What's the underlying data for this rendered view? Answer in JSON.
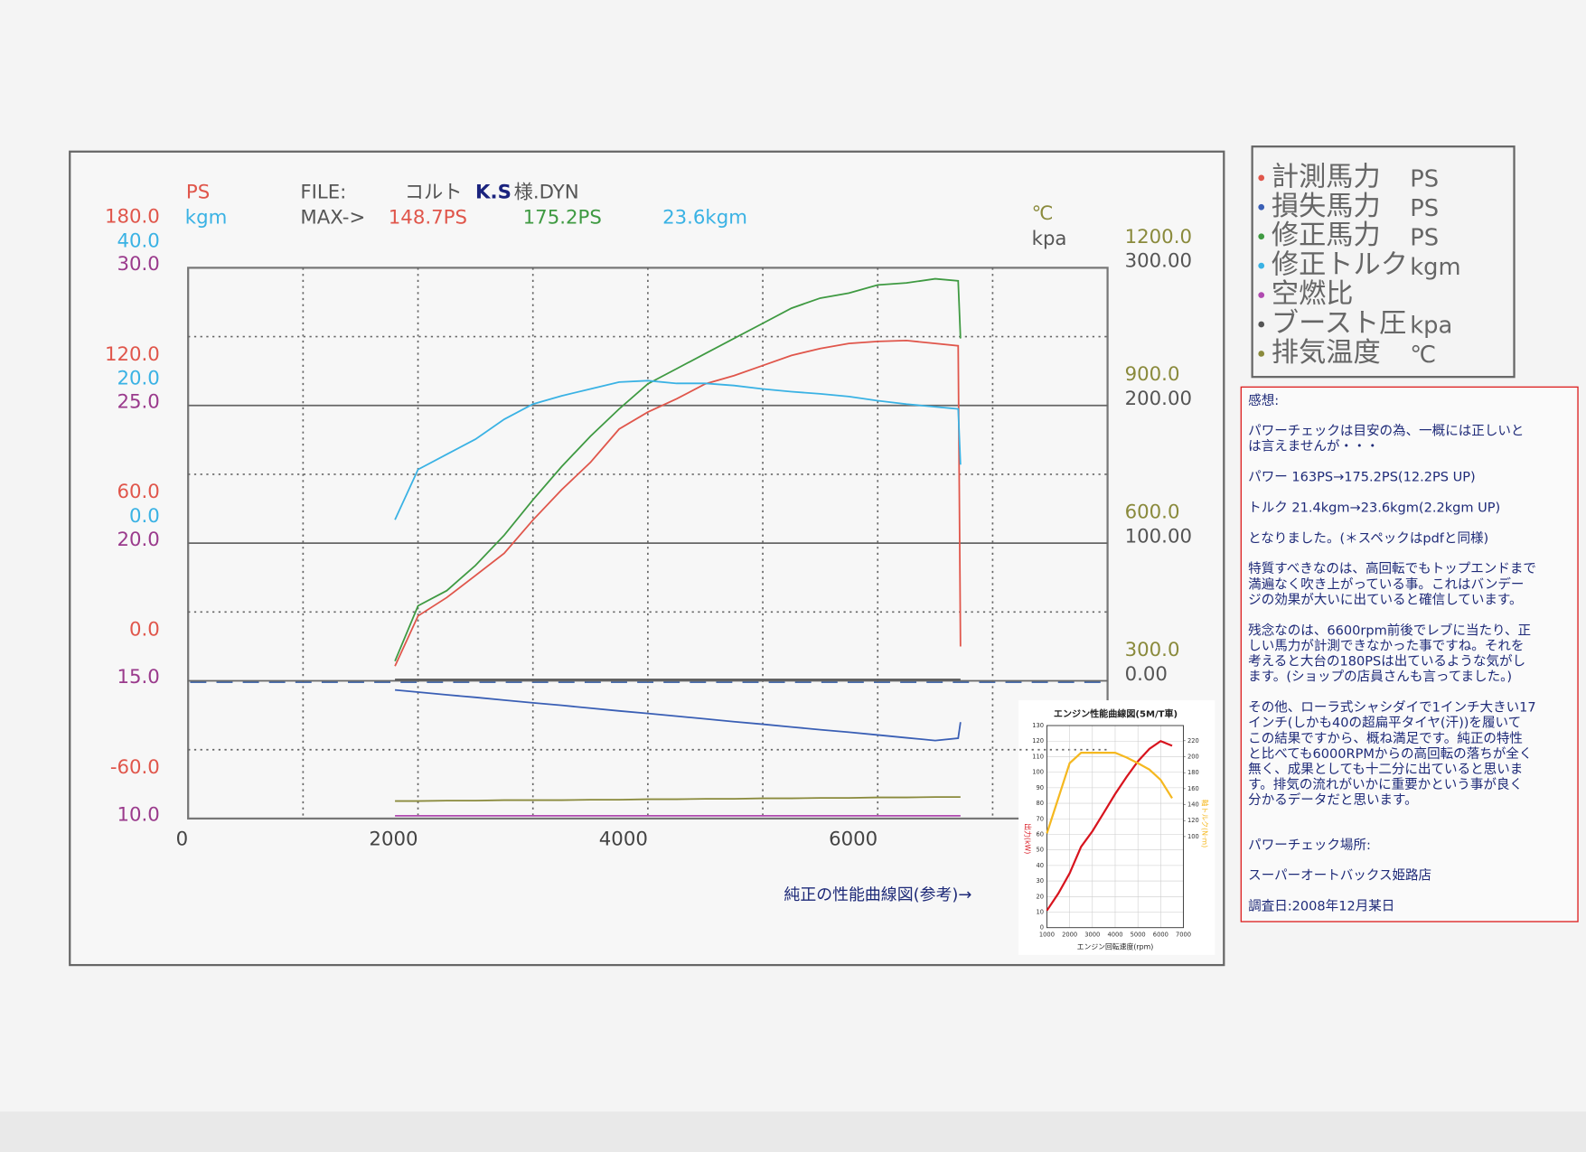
{
  "chart_data": [
    {
      "type": "line",
      "file": {
        "label": "FILE:",
        "name": [
          "コルト",
          "K.S",
          "様.DYN"
        ]
      },
      "max_label": "MAX->",
      "x": [
        1800,
        2000,
        2250,
        2500,
        2750,
        3000,
        3250,
        3500,
        3750,
        4000,
        4250,
        4500,
        4750,
        5000,
        5250,
        5500,
        5750,
        6000,
        6250,
        6500,
        6700,
        6720
      ],
      "xlim": [
        0,
        8000
      ],
      "xticks": [
        0,
        2000,
        4000,
        6000
      ],
      "grid": true,
      "axes": [
        {
          "label": "PS",
          "color": "#e0564b",
          "side": "left",
          "lim": [
            -60,
            180
          ],
          "ticks": [
            {
              "value": 180,
              "label": "180.0"
            },
            {
              "value": 120,
              "label": "120.0"
            },
            {
              "value": 60,
              "label": "60.0"
            },
            {
              "value": 0,
              "label": "0.0"
            },
            {
              "value": -60,
              "label": "-60.0"
            }
          ]
        },
        {
          "label": "kgm",
          "color": "#3ab2e4",
          "side": "left",
          "lim": [
            -40,
            40
          ],
          "ticks": [
            {
              "value": 40,
              "label": "40.0"
            },
            {
              "value": 20,
              "label": "20.0"
            },
            {
              "value": 0,
              "label": "0.0"
            }
          ]
        },
        {
          "color": "#9a3a8c",
          "side": "left",
          "lim": [
            10,
            30
          ],
          "ticks": [
            {
              "value": 30,
              "label": "30.0"
            },
            {
              "value": 25,
              "label": "25.0"
            },
            {
              "value": 20,
              "label": "20.0"
            },
            {
              "value": 15,
              "label": "15.0"
            },
            {
              "value": 10,
              "label": "10.0"
            }
          ]
        },
        {
          "label": "℃",
          "color": "#8a8a3c",
          "side": "right",
          "lim": [
            0,
            1200
          ],
          "ticks": [
            {
              "value": 1200,
              "label": "1200.0"
            },
            {
              "value": 900,
              "label": "900.0"
            },
            {
              "value": 600,
              "label": "600.0"
            },
            {
              "value": 300,
              "label": "300.0"
            }
          ]
        },
        {
          "label": "kpa",
          "color": "#555555",
          "side": "right",
          "lim": [
            -100,
            300
          ],
          "ticks": [
            {
              "value": 300,
              "label": "300.00"
            },
            {
              "value": 200,
              "label": "200.00"
            },
            {
              "value": 100,
              "label": "100.00"
            },
            {
              "value": 0,
              "label": "0.00"
            }
          ]
        }
      ],
      "series": [
        {
          "name": "計測馬力",
          "color": "#e0564b",
          "axis": 0,
          "max": 148.7,
          "max_label": "148.7PS",
          "values": [
            6.4,
            28.3,
            36.3,
            45.9,
            55.6,
            70.1,
            83.3,
            95.2,
            109.7,
            117.1,
            122.9,
            129.4,
            133.0,
            137.4,
            141.8,
            144.8,
            147.0,
            147.9,
            148.3,
            147.0,
            146.0,
            15.0
          ]
        },
        {
          "name": "損失馬力",
          "color": "#3a5fb5",
          "axis": 0,
          "values": [
            -4.0,
            -4.9,
            -6.1,
            -7.2,
            -8.4,
            -9.6,
            -10.7,
            -11.9,
            -13.1,
            -14.2,
            -15.4,
            -16.6,
            -17.8,
            -18.9,
            -20.1,
            -21.3,
            -22.4,
            -23.6,
            -24.8,
            -26.0,
            -25.0,
            -18.0
          ]
        },
        {
          "name": "修正馬力",
          "color": "#3f9a42",
          "axis": 0,
          "max": 175.2,
          "max_label": "175.2PS",
          "values": [
            8.6,
            32.7,
            39.3,
            50.3,
            63.5,
            78.9,
            93.4,
            106.6,
            118.5,
            129.4,
            136.0,
            142.6,
            149.2,
            155.8,
            162.4,
            166.8,
            169.0,
            172.5,
            173.4,
            175.2,
            174.3,
            149.2
          ]
        },
        {
          "name": "修正トルク",
          "color": "#3ab2e4",
          "axis": 1,
          "max": 23.6,
          "max_label": "23.6kgm",
          "values": [
            3.4,
            10.7,
            12.9,
            15.1,
            18.0,
            20.2,
            21.4,
            22.4,
            23.4,
            23.6,
            23.2,
            23.2,
            22.9,
            22.4,
            22.0,
            21.7,
            21.3,
            20.7,
            20.2,
            19.8,
            19.5,
            11.4
          ]
        },
        {
          "name": "空燃比",
          "color": "#b04ab0",
          "axis": 2,
          "values": [
            10.1,
            10.1,
            10.1,
            10.1,
            10.1,
            10.1,
            10.1,
            10.1,
            10.1,
            10.1,
            10.1,
            10.1,
            10.1,
            10.1,
            10.1,
            10.1,
            10.1,
            10.1,
            10.1,
            10.1,
            10.1,
            10.1
          ]
        },
        {
          "name": "ブースト圧",
          "color": "#555555",
          "axis": 4,
          "values": [
            1,
            1,
            1,
            1,
            1,
            1,
            1,
            1,
            1,
            1,
            1,
            1,
            1,
            1,
            1,
            1,
            1,
            1,
            1,
            1,
            1,
            1
          ]
        },
        {
          "name": "排気温度",
          "color": "#8a8a3c",
          "axis": 3,
          "values": [
            38,
            38,
            39,
            39,
            40,
            40,
            40,
            41,
            41,
            42,
            42,
            43,
            43,
            44,
            44,
            45,
            45,
            46,
            46,
            47,
            47,
            47
          ]
        }
      ]
    },
    {
      "type": "line",
      "title": "エンジン性能曲線図(5M/T車)",
      "xlabel": "エンジン回転速度(rpm)",
      "ylabel": "出力(kW)",
      "y2label": "軸トルク(N·m)",
      "x": [
        1000,
        1500,
        2000,
        2500,
        3000,
        3500,
        4000,
        4500,
        5000,
        5500,
        6000,
        6500
      ],
      "xlim": [
        1000,
        7000
      ],
      "xticks": [
        1000,
        2000,
        3000,
        4000,
        5000,
        6000,
        7000
      ],
      "ylim": [
        0,
        130
      ],
      "yticks": [
        0,
        10,
        20,
        30,
        40,
        50,
        60,
        70,
        80,
        90,
        100,
        110,
        120,
        130
      ],
      "y2lim": [
        -14,
        239
      ],
      "y2ticks": [
        100,
        120,
        140,
        160,
        180,
        200,
        220
      ],
      "series": [
        {
          "name": "出力",
          "color": "#d8141e",
          "values": [
            11,
            22,
            35,
            52,
            62,
            74,
            86,
            97,
            107,
            115,
            120,
            117
          ]
        },
        {
          "name": "軸トルク",
          "color": "#f5b820",
          "axis": "y2",
          "values": [
            104,
            148,
            192,
            205,
            205,
            205,
            205,
            199,
            192,
            184,
            171,
            148
          ]
        }
      ]
    }
  ],
  "caption": "純正の性能曲線図(参考)→",
  "notes": {
    "title": "感想:",
    "paragraphs": [
      [
        "パワーチェックは目安の為、一概には正しいと",
        "は言えませんが・・・"
      ],
      [
        "パワー 163PS→175.2PS(12.2PS UP)"
      ],
      [
        "トルク 21.4kgm→23.6kgm(2.2kgm UP)"
      ],
      [
        "となりました。(＊スペックはpdfと同様)"
      ],
      [
        "特質すべきなのは、高回転でもトップエンドまで",
        "満遍なく吹き上がっている事。これはバンデー",
        "ジの効果が大いに出ていると確信しています。"
      ],
      [
        "残念なのは、6600rpm前後でレブに当たり、正",
        "しい馬力が計測できなかった事ですね。それを",
        "考えると大台の180PSは出ているような気がし",
        "ます。(ショップの店員さんも言ってました。)"
      ],
      [
        "その他、ローラ式シャシダイで1インチ大きい17",
        "インチ(しかも40の超扁平タイヤ(汗))を履いて",
        "この結果ですから、概ね満足です。純正の特性",
        "と比べても6000RPMからの高回転の落ちが全く",
        "無く、成果としても十二分に出ていると思いま",
        "す。排気の流れがいかに重要かという事が良く",
        "分かるデータだと思います。"
      ],
      [
        "パワーチェック場所:"
      ],
      [
        "スーパーオートバックス姫路店"
      ],
      [
        "調査日:2008年12月某日"
      ]
    ]
  }
}
